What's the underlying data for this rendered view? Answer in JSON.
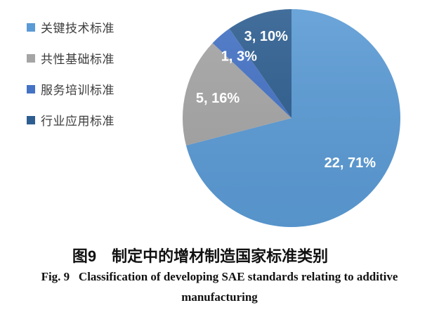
{
  "figure": {
    "caption_zh": "图9　制定中的增材制造国家标准类别",
    "caption_en_line1": "Fig. 9   Classification of developing SAE standards relating to additive",
    "caption_en_line2": "manufacturing"
  },
  "legend": {
    "position": "left",
    "items": [
      {
        "label": "关键技术标准",
        "color": "#5B9BD5"
      },
      {
        "label": "共性基础标准",
        "color": "#A5A5A5"
      },
      {
        "label": "服务培训标准",
        "color": "#4472C4"
      },
      {
        "label": "行业应用标准",
        "color": "#2E5E90"
      }
    ]
  },
  "chart_data": {
    "type": "pie",
    "title": "制定中的增材制造国家标准类别",
    "total": 31,
    "start_angle_deg": 0,
    "direction": "clockwise",
    "legend_position": "left",
    "data_label_format": "value, percent%",
    "slices": [
      {
        "category": "关键技术标准",
        "value": 22,
        "percent": 71,
        "label": "22, 71%",
        "color": "#5B9BD5"
      },
      {
        "category": "共性基础标准",
        "value": 5,
        "percent": 16,
        "label": "5, 16%",
        "color": "#A5A5A5"
      },
      {
        "category": "服务培训标准",
        "value": 1,
        "percent": 3,
        "label": "1, 3%",
        "color": "#4472C4"
      },
      {
        "category": "行业应用标准",
        "value": 3,
        "percent": 10,
        "label": "3, 10%",
        "color": "#2E5E90"
      }
    ]
  }
}
